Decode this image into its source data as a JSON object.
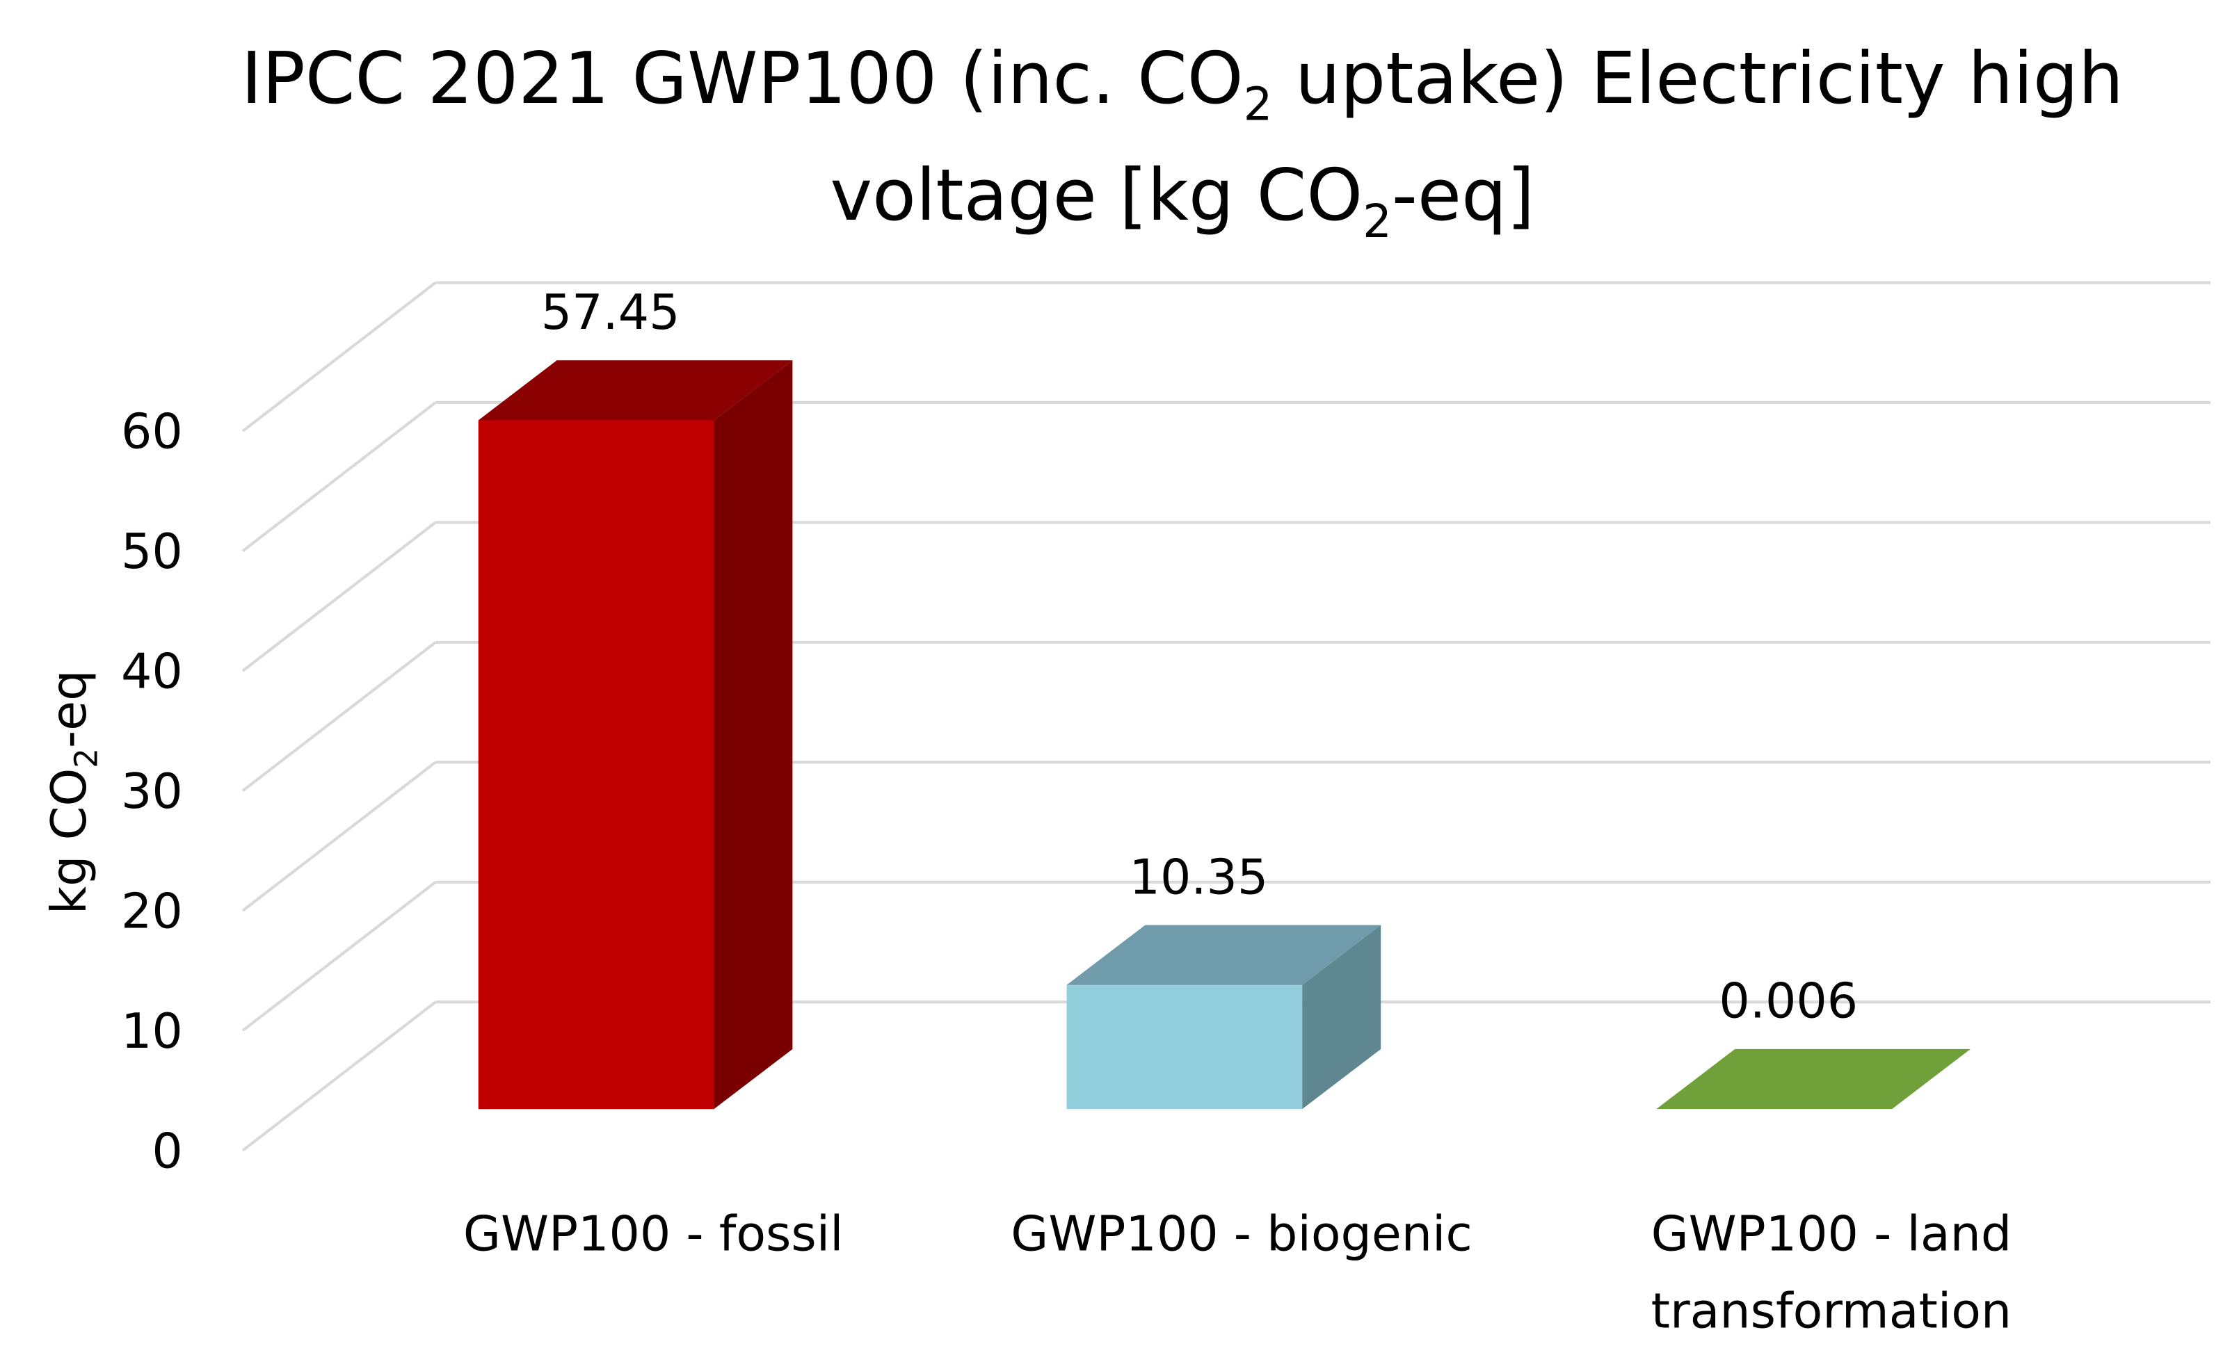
{
  "chart_data": {
    "type": "bar",
    "style": "3d-column",
    "title": {
      "line1": [
        "IPCC 2021 GWP100 (inc. CO",
        "2",
        " uptake) Electricity high"
      ],
      "line2": [
        "voltage [kg CO",
        "2",
        "-eq]"
      ]
    },
    "ylabel": [
      "kg CO",
      "2",
      "-eq"
    ],
    "xlabel": "",
    "ylim": [
      0,
      60
    ],
    "yticks": [
      "0",
      "10",
      "20",
      "30",
      "40",
      "50",
      "60"
    ],
    "ytick_values": [
      0,
      10,
      20,
      30,
      40,
      50,
      60
    ],
    "grid": true,
    "categories": [
      [
        "GWP100 - fossil"
      ],
      [
        "GWP100 - biogenic"
      ],
      [
        "GWP100 - land",
        "transformation"
      ]
    ],
    "values": [
      57.45,
      10.35,
      0.006
    ],
    "data_labels": [
      "57.45",
      "10.35",
      "0.006"
    ],
    "colors": [
      {
        "front": "#C00000",
        "top": "#8B0000",
        "side": "#7A0000"
      },
      {
        "front": "#92CDDC",
        "top": "#6F9BAA",
        "side": "#5F8791"
      },
      {
        "front": "#70A03A",
        "top": "#70A03A",
        "side": "#5A8230"
      }
    ]
  }
}
